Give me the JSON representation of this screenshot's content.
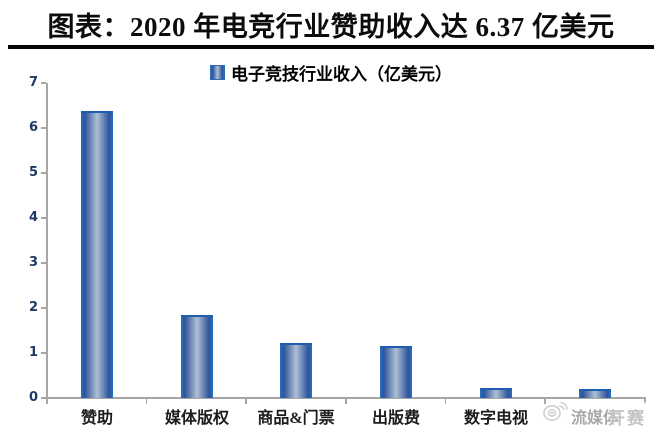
{
  "header": {
    "title": "图表：2020 年电竞行业赞助收入达 6.37 亿美元"
  },
  "legend": {
    "label": "电子竞技行业收入（亿美元）"
  },
  "chart_data": {
    "type": "bar",
    "title": "图表：2020 年电竞行业赞助收入达 6.37 亿美元",
    "legend_entries": [
      "电子竞技行业收入（亿美元）"
    ],
    "legend_position": "top-center",
    "categories": [
      "赞助",
      "媒体版权",
      "商品&门票",
      "出版费",
      "数字电视",
      "流媒体"
    ],
    "values": [
      6.37,
      1.85,
      1.22,
      1.16,
      0.22,
      0.2
    ],
    "xlabel": "",
    "ylabel": "",
    "ylim": [
      0,
      7
    ],
    "yticks": [
      0,
      1,
      2,
      3,
      4,
      5,
      6,
      7
    ],
    "grid": false
  },
  "watermark": {
    "icon": "weibo-icon",
    "visible_text": "开赛"
  },
  "colors": {
    "title_text": "#0c0c0c",
    "title_rule": "#050505",
    "axis": "#a6a6a6",
    "y_tick_label": "#1f3864",
    "bar_edge_blue": "#2272c3",
    "bar_shade_dark": "#30549b",
    "bar_center_light": "#aebfd6",
    "bar_top_cap": "#1d5fae",
    "category_label": "#1c1c1c",
    "watermark_gray": "#b9b9b9"
  }
}
